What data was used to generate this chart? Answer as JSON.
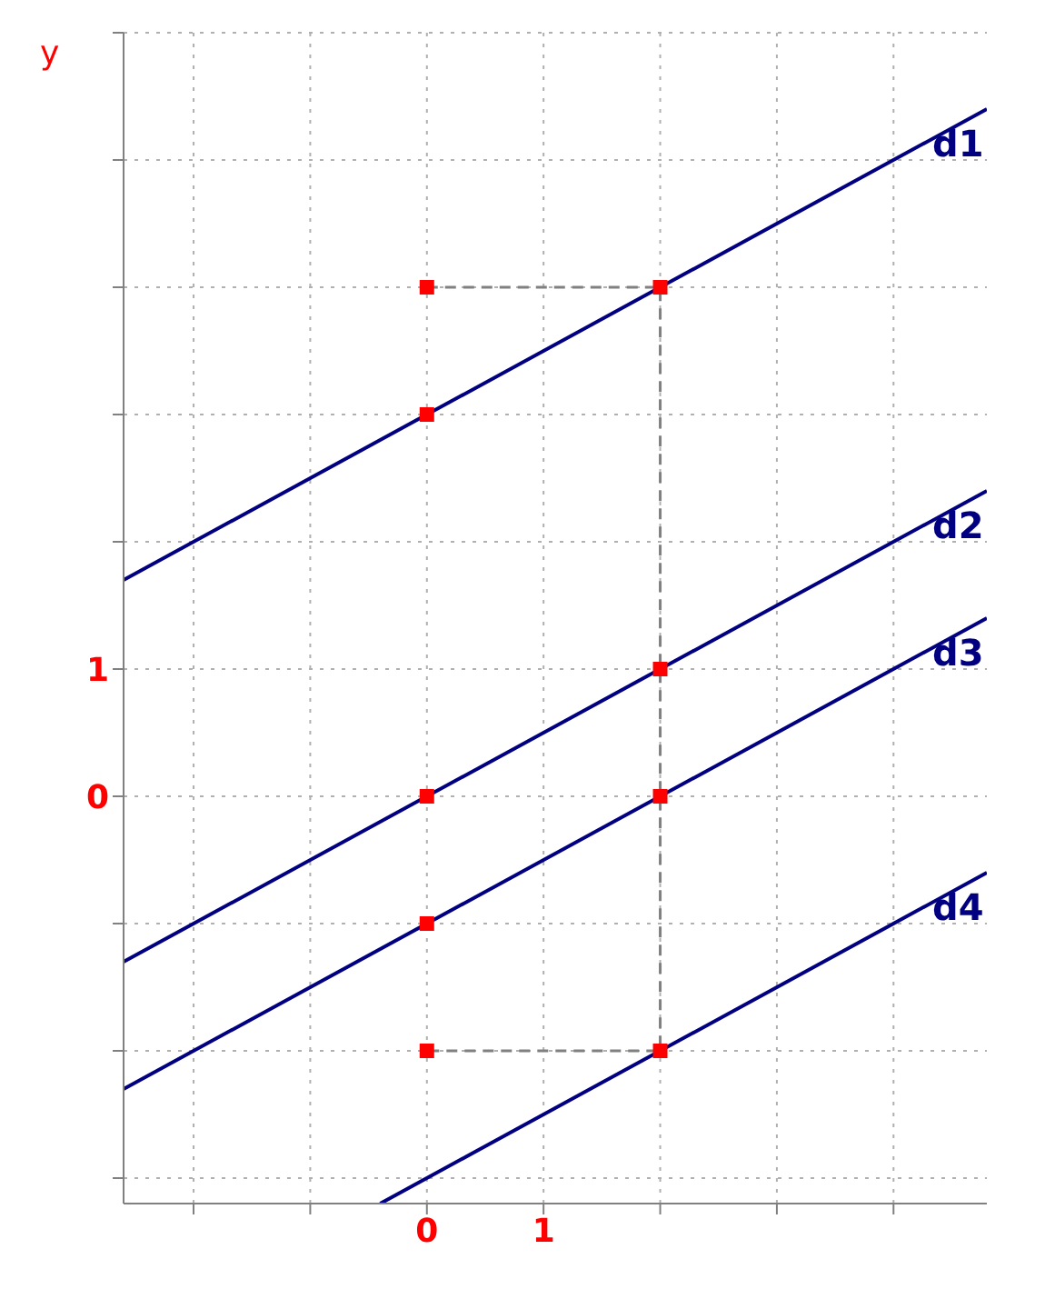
{
  "chart_data": {
    "type": "line",
    "ylabel": "y",
    "xlim": [
      -2.6,
      4.8
    ],
    "ylim": [
      -3.2,
      6
    ],
    "xticks": [
      {
        "value": -2,
        "label": null
      },
      {
        "value": -1,
        "label": null
      },
      {
        "value": 0,
        "label": "0"
      },
      {
        "value": 1,
        "label": "1"
      },
      {
        "value": 2,
        "label": null
      },
      {
        "value": 3,
        "label": null
      },
      {
        "value": 4,
        "label": null
      }
    ],
    "yticks": [
      {
        "value": -3,
        "label": null
      },
      {
        "value": -2,
        "label": null
      },
      {
        "value": -1,
        "label": null
      },
      {
        "value": 0,
        "label": "0"
      },
      {
        "value": 1,
        "label": "1"
      },
      {
        "value": 2,
        "label": null
      },
      {
        "value": 3,
        "label": null
      },
      {
        "value": 4,
        "label": null
      },
      {
        "value": 5,
        "label": null
      },
      {
        "value": 6,
        "label": null
      }
    ],
    "grid": true,
    "legend": false,
    "marker": "none",
    "line_style": "solid",
    "series": [
      {
        "name": "d1",
        "color": "#000080",
        "x": [
          -2.6,
          4.8
        ],
        "values": [
          1.7,
          5.4
        ]
      },
      {
        "name": "d2",
        "color": "#000080",
        "x": [
          -2.6,
          4.8
        ],
        "values": [
          -1.3,
          2.4
        ]
      },
      {
        "name": "d3",
        "color": "#000080",
        "x": [
          -2.6,
          4.8
        ],
        "values": [
          -2.3,
          1.4
        ]
      },
      {
        "name": "d4",
        "color": "#000080",
        "x": [
          -0.4,
          4.8
        ],
        "values": [
          -3.2,
          -0.6
        ]
      },
      {
        "type": "line",
        "color": "#808080",
        "line_style": "dashed",
        "x": [
          0,
          2,
          2,
          0
        ],
        "values": [
          4,
          4,
          -2,
          -2
        ]
      },
      {
        "type": "scatter",
        "color": "#ff0000",
        "marker": "square",
        "x": [
          0,
          0,
          0,
          0,
          0,
          2,
          2,
          2,
          2
        ],
        "values": [
          4,
          3,
          0,
          -1,
          -2,
          4,
          1,
          0,
          -2
        ]
      }
    ]
  }
}
